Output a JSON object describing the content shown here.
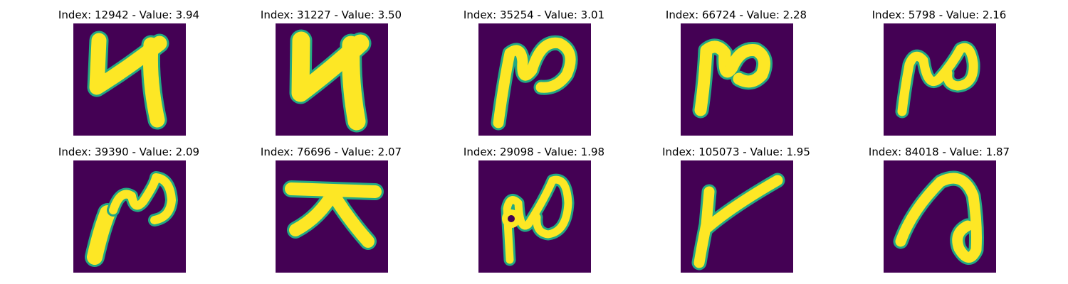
{
  "colors": {
    "background": "#440154",
    "ink": "#fde725",
    "edge": "#22a884"
  },
  "panels": [
    {
      "title": "Index: 12942 - Value: 3.94",
      "glyph": "handwritten-u"
    },
    {
      "title": "Index: 31227 - Value: 3.50",
      "glyph": "handwritten-u"
    },
    {
      "title": "Index: 35254 - Value: 3.01",
      "glyph": "handwritten-loop-n"
    },
    {
      "title": "Index: 66724 - Value: 2.28",
      "glyph": "handwritten-loop-n"
    },
    {
      "title": "Index: 5798 - Value: 2.16",
      "glyph": "handwritten-loop-n"
    },
    {
      "title": "Index: 39390 - Value: 2.09",
      "glyph": "handwritten-loop-n"
    },
    {
      "title": "Index: 76696 - Value: 2.07",
      "glyph": "handwritten-cross-character"
    },
    {
      "title": "Index: 29098 - Value: 1.98",
      "glyph": "handwritten-loop-n"
    },
    {
      "title": "Index: 105073 - Value: 1.95",
      "glyph": "handwritten-check-character"
    },
    {
      "title": "Index: 84018 - Value: 1.87",
      "glyph": "handwritten-hooked-character"
    }
  ]
}
